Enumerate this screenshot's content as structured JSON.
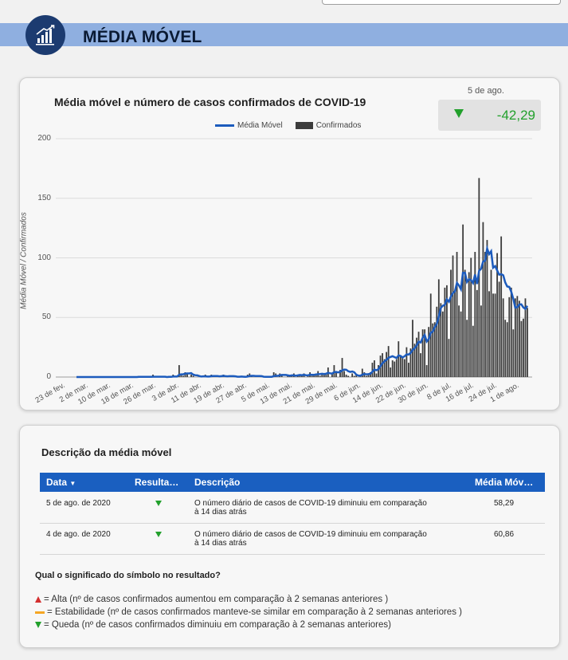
{
  "header": {
    "title": "MÉDIA MÓVEL",
    "icon": "bar-chart-growth-icon",
    "accent": "#8fafe0",
    "logo_color": "#1c3b70"
  },
  "kpi": {
    "date": "5 de ago.",
    "value": "-42,29",
    "trend": "down",
    "color": "#22a02c"
  },
  "chart_data": {
    "type": "bar+line",
    "title": "Média móvel e número de casos confirmados de COVID-19",
    "ylabel": "Média Móvel / Confirmados",
    "ylim": [
      0,
      200
    ],
    "yticks": [
      0,
      50,
      100,
      150,
      200
    ],
    "legend": [
      "Média Móvel",
      "Confirmados"
    ],
    "legend_position": "top",
    "grid": true,
    "series_colors": {
      "Média Móvel": "#1c5bbd",
      "Confirmados": "#3c3c3c"
    },
    "x_tick_labels": [
      "23 de fev.",
      "2 de mar.",
      "10 de mar.",
      "18 de mar.",
      "26 de mar.",
      "3 de abr.",
      "11 de abr.",
      "19 de abr.",
      "27 de abr.",
      "5 de mai.",
      "13 de mai.",
      "21 de mai.",
      "29 de mai.",
      "6 de jun.",
      "14 de jun.",
      "22 de jun.",
      "30 de jun.",
      "8 de jul.",
      "16 de jul.",
      "24 de jul.",
      "1 de ago."
    ],
    "start_label": "23 de fev.",
    "confirmados": [
      0,
      0,
      0,
      0,
      0,
      0,
      0,
      0,
      0,
      0,
      0,
      0,
      0,
      0,
      0,
      0,
      0,
      0,
      0,
      0,
      0,
      0,
      0,
      0,
      0,
      0,
      0,
      0,
      0,
      0,
      0,
      1,
      0,
      0,
      0,
      0,
      0,
      0,
      2,
      0,
      0,
      0,
      0,
      0,
      0,
      0,
      1,
      0,
      2,
      0,
      0,
      10,
      3,
      1,
      4,
      3,
      0,
      2,
      1,
      0,
      0,
      0,
      0,
      1,
      2,
      0,
      0,
      2,
      1,
      0,
      1,
      0,
      1,
      2,
      0,
      0,
      1,
      1,
      0,
      0,
      0,
      0,
      1,
      0,
      0,
      2,
      3,
      1,
      0,
      0,
      0,
      0,
      1,
      0,
      0,
      0,
      0,
      0,
      4,
      3,
      0,
      3,
      2,
      0,
      0,
      2,
      1,
      2,
      3,
      0,
      2,
      2,
      1,
      3,
      0,
      2,
      4,
      1,
      2,
      3,
      5,
      1,
      3,
      3,
      2,
      8,
      0,
      3,
      10,
      4,
      0,
      6,
      16,
      5,
      2,
      1,
      0,
      3,
      1,
      2,
      0,
      1,
      7,
      4,
      1,
      2,
      4,
      12,
      14,
      3,
      10,
      18,
      20,
      15,
      21,
      26,
      8,
      14,
      13,
      15,
      30,
      18,
      17,
      15,
      25,
      12,
      24,
      48,
      28,
      33,
      38,
      20,
      40,
      40,
      10,
      42,
      70,
      45,
      46,
      59,
      82,
      62,
      55,
      75,
      77,
      32,
      90,
      102,
      72,
      105,
      60,
      55,
      128,
      90,
      48,
      88,
      100,
      43,
      105,
      73,
      167,
      60,
      130,
      105,
      115,
      72,
      90,
      70,
      70,
      104,
      80,
      118,
      66,
      48,
      46,
      67,
      75,
      40,
      66,
      68,
      64,
      47,
      49,
      66,
      58
    ]
  },
  "table": {
    "title": "Descrição da média móvel",
    "headers": {
      "data": "Data",
      "resultado": "Resulta…",
      "descricao": "Descrição",
      "media": "Média Móv…"
    },
    "rows": [
      {
        "data": "5 de ago. de 2020",
        "resultado": "down",
        "descricao": "O número diário de casos de COVID-19 diminuiu em comparação à 14 dias atrás",
        "media": "58,29"
      },
      {
        "data": "4 de ago. de 2020",
        "resultado": "down",
        "descricao": "O número diário de casos de COVID-19 diminuiu em comparação à 14 dias atrás",
        "media": "60,86"
      }
    ]
  },
  "symbols": {
    "title": "Qual o significado do símbolo no resultado?",
    "alta": "= Alta (nº de casos confirmados aumentou em comparação à 2 semanas anteriores )",
    "estabilidade": "= Estabilidade (nº de casos confirmados manteve-se similar em comparação à 2 semanas anteriores )",
    "queda": "= Queda (nº de casos confirmados diminuiu em comparação à 2 semanas anteriores)"
  }
}
